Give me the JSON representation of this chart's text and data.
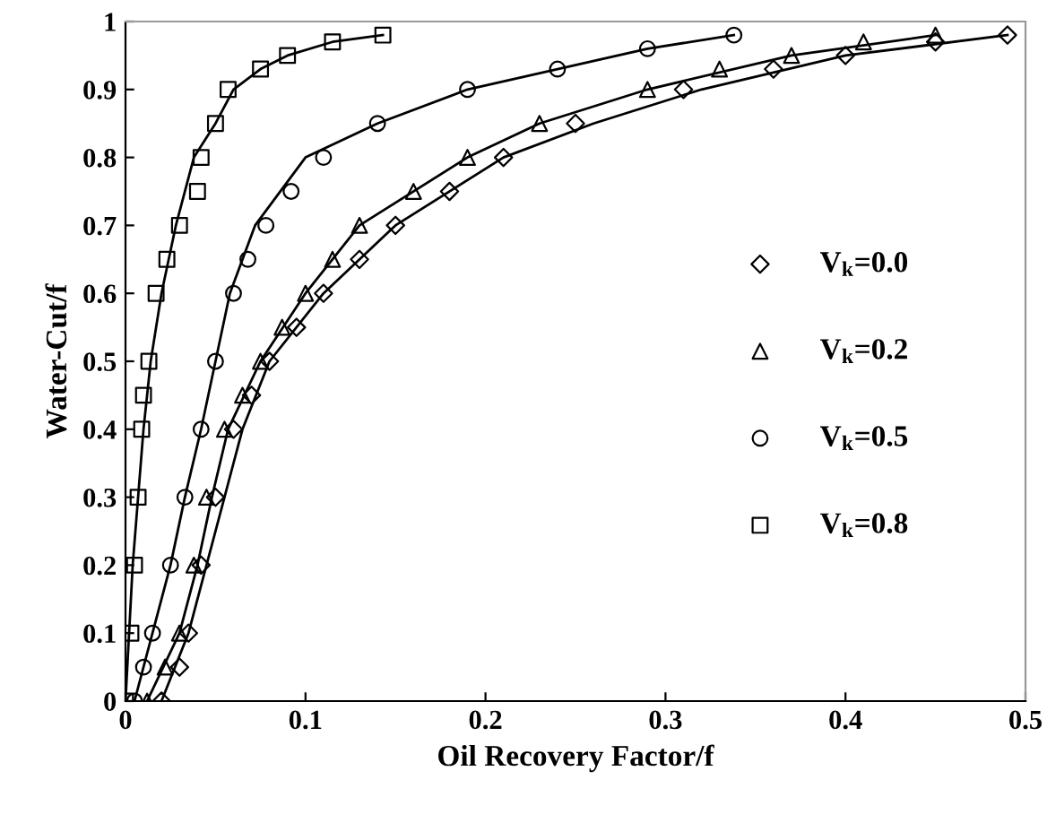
{
  "chart_data": {
    "type": "scatter",
    "xlabel": "Oil Recovery Factor/f",
    "ylabel": "Water-Cut/f",
    "xlim": [
      0,
      0.5
    ],
    "ylim": [
      0,
      1
    ],
    "xticks": [
      0,
      0.1,
      0.2,
      0.3,
      0.4,
      0.5
    ],
    "yticks": [
      0,
      0.1,
      0.2,
      0.3,
      0.4,
      0.5,
      0.6,
      0.7,
      0.8,
      0.9,
      1
    ],
    "grid": false,
    "legend": "right",
    "series": [
      {
        "name": "V$_{k}$=0.0",
        "marker": "diamond",
        "color": "#000000",
        "x": [
          0.02,
          0.03,
          0.035,
          0.042,
          0.05,
          0.06,
          0.07,
          0.08,
          0.095,
          0.11,
          0.13,
          0.15,
          0.18,
          0.21,
          0.25,
          0.31,
          0.36,
          0.4,
          0.45,
          0.49
        ],
        "values": [
          0,
          0.05,
          0.1,
          0.2,
          0.3,
          0.4,
          0.45,
          0.5,
          0.55,
          0.6,
          0.65,
          0.7,
          0.75,
          0.8,
          0.85,
          0.9,
          0.93,
          0.95,
          0.97,
          0.98
        ]
      },
      {
        "name": "V$_{k}$=0.2",
        "marker": "triangle",
        "color": "#000000",
        "x": [
          0.012,
          0.022,
          0.03,
          0.038,
          0.045,
          0.055,
          0.065,
          0.075,
          0.087,
          0.1,
          0.115,
          0.13,
          0.16,
          0.19,
          0.23,
          0.29,
          0.33,
          0.37,
          0.41,
          0.45
        ],
        "values": [
          0,
          0.05,
          0.1,
          0.2,
          0.3,
          0.4,
          0.45,
          0.5,
          0.55,
          0.6,
          0.65,
          0.7,
          0.75,
          0.8,
          0.85,
          0.9,
          0.93,
          0.95,
          0.97,
          0.98
        ]
      },
      {
        "name": "V$_{k}$=0.5",
        "marker": "circle",
        "color": "#000000",
        "x": [
          0.005,
          0.01,
          0.015,
          0.025,
          0.033,
          0.042,
          0.05,
          0.06,
          0.068,
          0.078,
          0.092,
          0.11,
          0.14,
          0.19,
          0.24,
          0.29,
          0.338
        ],
        "values": [
          0,
          0.05,
          0.1,
          0.2,
          0.3,
          0.4,
          0.5,
          0.6,
          0.65,
          0.7,
          0.75,
          0.8,
          0.85,
          0.9,
          0.93,
          0.96,
          0.98
        ]
      },
      {
        "name": "V$_{k}$=0.8",
        "marker": "square",
        "color": "#000000",
        "x": [
          0,
          0.003,
          0.005,
          0.007,
          0.009,
          0.01,
          0.013,
          0.017,
          0.023,
          0.03,
          0.04,
          0.042,
          0.05,
          0.057,
          0.075,
          0.09,
          0.115,
          0.143
        ],
        "values": [
          0,
          0.1,
          0.2,
          0.3,
          0.4,
          0.45,
          0.5,
          0.6,
          0.65,
          0.7,
          0.75,
          0.8,
          0.85,
          0.9,
          0.93,
          0.95,
          0.97,
          0.98
        ]
      },
      {
        "type": "line",
        "color": "#000000",
        "x": [
          0.02,
          0.035,
          0.045,
          0.055,
          0.065,
          0.08,
          0.11,
          0.15,
          0.21,
          0.26,
          0.32,
          0.4,
          0.49
        ],
        "values": [
          0,
          0.1,
          0.2,
          0.3,
          0.4,
          0.5,
          0.6,
          0.7,
          0.8,
          0.85,
          0.9,
          0.95,
          0.98
        ]
      },
      {
        "type": "line",
        "color": "#000000",
        "x": [
          0.012,
          0.03,
          0.04,
          0.048,
          0.057,
          0.075,
          0.1,
          0.13,
          0.19,
          0.23,
          0.29,
          0.37,
          0.45
        ],
        "values": [
          0,
          0.1,
          0.2,
          0.3,
          0.4,
          0.5,
          0.6,
          0.7,
          0.8,
          0.85,
          0.9,
          0.95,
          0.98
        ]
      },
      {
        "type": "line",
        "color": "#000000",
        "x": [
          0.005,
          0.015,
          0.025,
          0.033,
          0.042,
          0.05,
          0.058,
          0.072,
          0.1,
          0.14,
          0.19,
          0.24,
          0.29,
          0.338
        ],
        "values": [
          0,
          0.1,
          0.2,
          0.3,
          0.4,
          0.5,
          0.6,
          0.7,
          0.8,
          0.85,
          0.9,
          0.93,
          0.96,
          0.98
        ]
      },
      {
        "type": "line",
        "color": "#000000",
        "x": [
          0,
          0.004,
          0.007,
          0.01,
          0.014,
          0.02,
          0.028,
          0.038,
          0.05,
          0.06,
          0.075,
          0.09,
          0.115,
          0.143
        ],
        "values": [
          0,
          0.2,
          0.3,
          0.4,
          0.5,
          0.6,
          0.7,
          0.8,
          0.85,
          0.9,
          0.93,
          0.95,
          0.97,
          0.98
        ]
      }
    ]
  }
}
